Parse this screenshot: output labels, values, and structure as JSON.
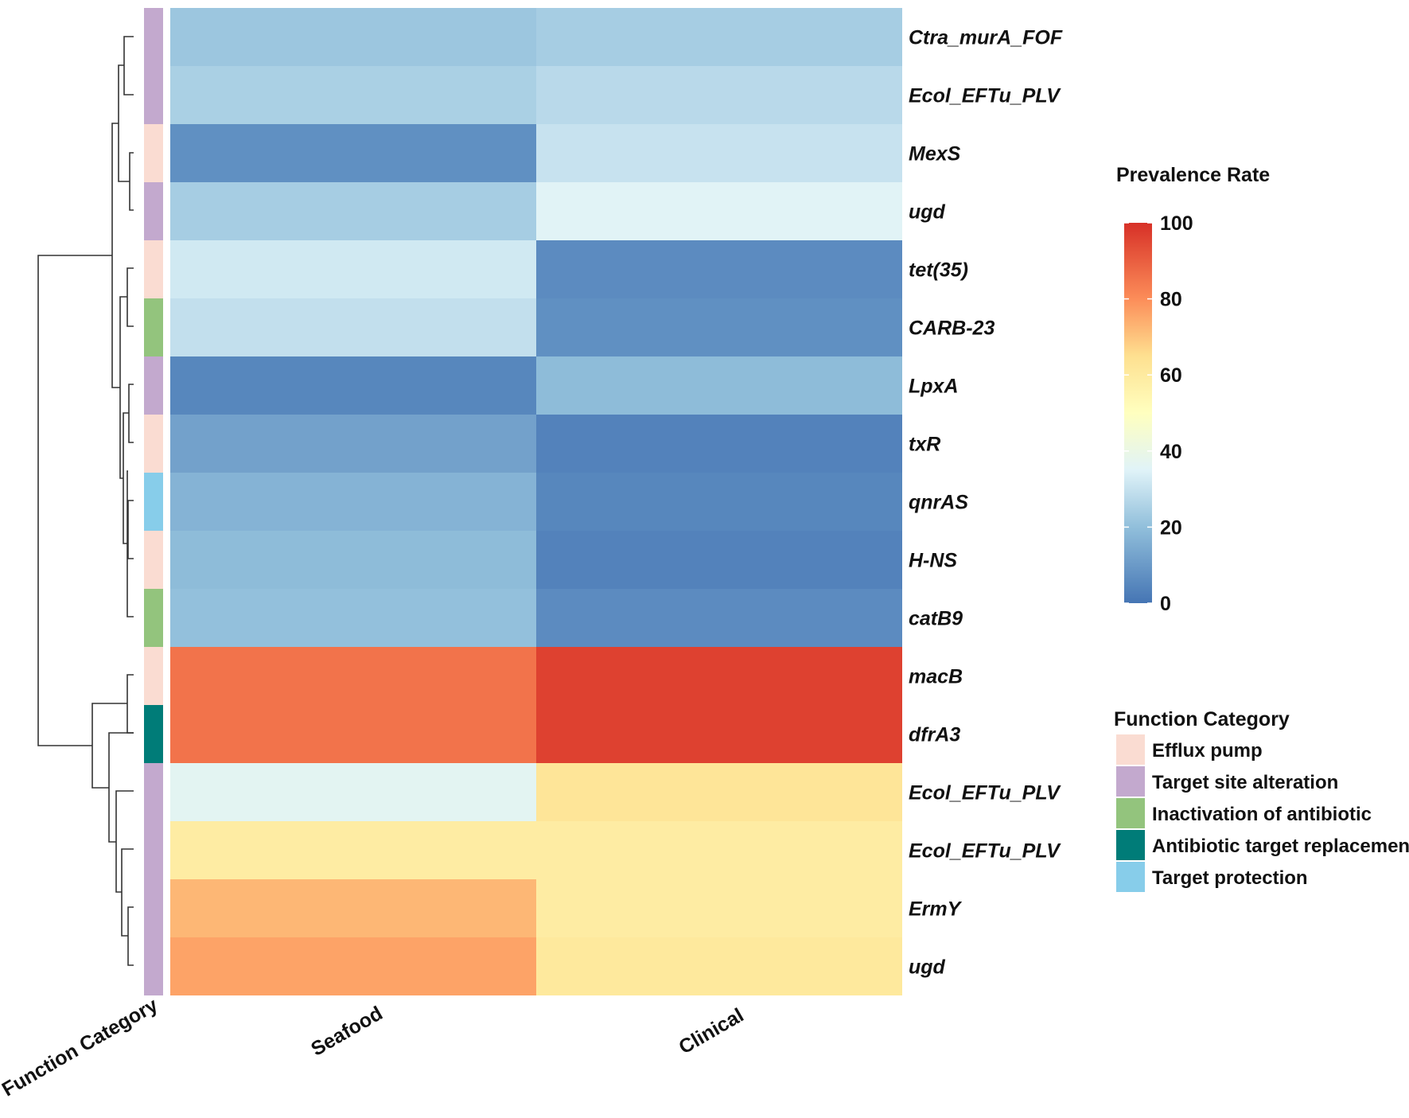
{
  "chart_data": {
    "type": "heatmap",
    "columns": [
      "Seafood",
      "Clinical"
    ],
    "rows": [
      "Ctra_murA_FOF",
      "Ecol_EFTu_PLV",
      "MexS",
      "ugd",
      "tet(35)",
      "CARB-23",
      "LpxA",
      "txR",
      "qnrAS",
      "H-NS",
      "catB9",
      "macB",
      "dfrA3",
      "Ecol_EFTu_PLV",
      "Ecol_EFTu_PLV",
      "ErmY",
      "ugd"
    ],
    "values": [
      [
        19,
        21
      ],
      [
        22,
        25
      ],
      [
        6,
        28
      ],
      [
        21,
        34
      ],
      [
        30,
        5
      ],
      [
        27,
        6
      ],
      [
        4,
        16
      ],
      [
        10,
        3
      ],
      [
        14,
        4
      ],
      [
        16,
        3
      ],
      [
        17,
        5
      ],
      [
        88,
        97
      ],
      [
        88,
        97
      ],
      [
        35,
        64
      ],
      [
        60,
        60
      ],
      [
        75,
        60
      ],
      [
        79,
        62
      ]
    ],
    "row_categories": [
      "Target site alteration",
      "Target site alteration",
      "Efflux pump",
      "Target site alteration",
      "Efflux pump",
      "Inactivation of antibiotic",
      "Target site alteration",
      "Efflux pump",
      "Target protection",
      "Efflux pump",
      "Inactivation of antibiotic",
      "Efflux pump",
      "Antibiotic target replacement",
      "Target site alteration",
      "Target site alteration",
      "Target site alteration",
      "Target site alteration"
    ],
    "annotation_axis_label": "Function Category",
    "colorbar": {
      "title": "Prevalence Rate",
      "min": 0,
      "max": 100,
      "ticks": [
        0,
        20,
        40,
        60,
        80,
        100
      ],
      "colors": [
        "#4575b4",
        "#91bfdb",
        "#e0f3f8",
        "#ffffbf",
        "#fee090",
        "#fc8d59",
        "#d73027"
      ]
    },
    "category_legend": {
      "title": "Function Category",
      "items": [
        {
          "label": "Efflux pump",
          "color": "#fadcd2"
        },
        {
          "label": "Target site alteration",
          "color": "#c3a9ce"
        },
        {
          "label": "Inactivation of antibiotic",
          "color": "#93c47d"
        },
        {
          "label": "Antibiotic target replacement",
          "color": "#007c78"
        },
        {
          "label": "Target protection",
          "color": "#87cdea"
        }
      ]
    },
    "dendrogram": "row clustering shown on left"
  }
}
